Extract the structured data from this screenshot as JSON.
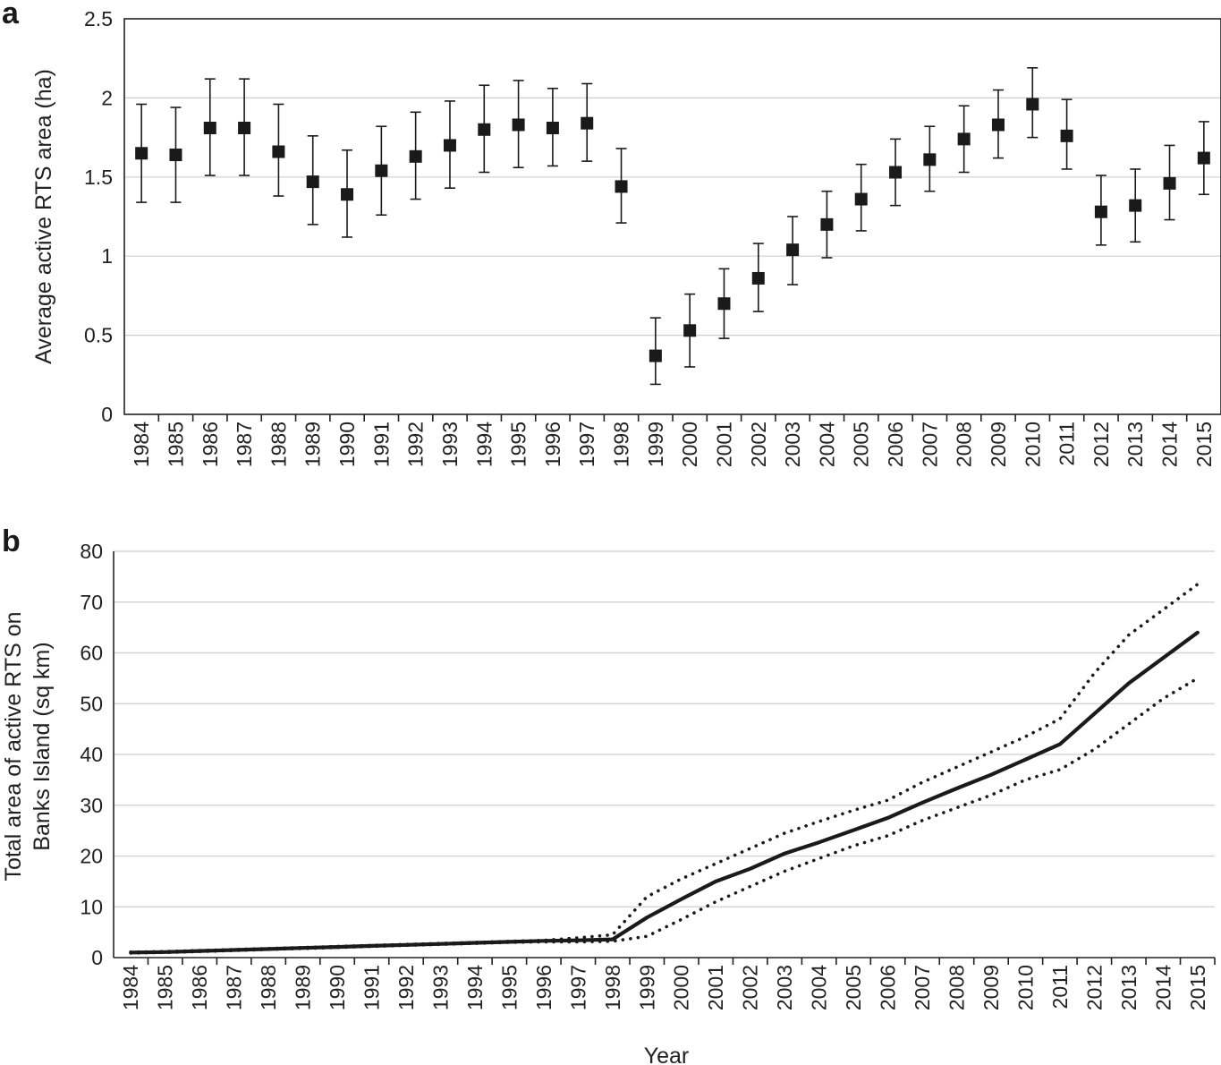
{
  "chart_data": [
    {
      "panel_label": "a",
      "type": "scatter",
      "ylabel": "Average active RTS area (ha)",
      "xlabel": "",
      "ylim": [
        0,
        2.5
      ],
      "yticks": [
        "0",
        "0.5",
        "1",
        "1.5",
        "2",
        "2.5"
      ],
      "grid": true,
      "categories": [
        "1984",
        "1985",
        "1986",
        "1987",
        "1988",
        "1989",
        "1990",
        "1991",
        "1992",
        "1993",
        "1994",
        "1995",
        "1996",
        "1997",
        "1998",
        "1999",
        "2000",
        "2001",
        "2002",
        "2003",
        "2004",
        "2005",
        "2006",
        "2007",
        "2008",
        "2009",
        "2010",
        "2011",
        "2012",
        "2013",
        "2014",
        "2015"
      ],
      "series": [
        {
          "values": [
            1.65,
            1.64,
            1.81,
            1.81,
            1.66,
            1.47,
            1.39,
            1.54,
            1.63,
            1.7,
            1.8,
            1.83,
            1.81,
            1.84,
            1.44,
            0.37,
            0.53,
            0.7,
            0.86,
            1.04,
            1.2,
            1.36,
            1.53,
            1.61,
            1.74,
            1.83,
            1.96,
            1.76,
            1.28,
            1.32,
            1.46,
            1.62
          ],
          "upper": [
            1.96,
            1.94,
            2.12,
            2.12,
            1.96,
            1.76,
            1.67,
            1.82,
            1.91,
            1.98,
            2.08,
            2.11,
            2.06,
            2.09,
            1.68,
            0.61,
            0.76,
            0.92,
            1.08,
            1.25,
            1.41,
            1.58,
            1.74,
            1.82,
            1.95,
            2.05,
            2.19,
            1.99,
            1.51,
            1.55,
            1.7,
            1.85
          ],
          "lower": [
            1.34,
            1.34,
            1.51,
            1.51,
            1.38,
            1.2,
            1.12,
            1.26,
            1.36,
            1.43,
            1.53,
            1.56,
            1.57,
            1.6,
            1.21,
            0.19,
            0.3,
            0.48,
            0.65,
            0.82,
            0.99,
            1.16,
            1.32,
            1.41,
            1.53,
            1.62,
            1.75,
            1.55,
            1.07,
            1.09,
            1.23,
            1.39
          ]
        }
      ]
    },
    {
      "panel_label": "b",
      "type": "line",
      "ylabel_lines": [
        "Total area of active RTS on",
        "Banks Island (sq km)"
      ],
      "xlabel": "Year",
      "ylim": [
        0,
        80
      ],
      "yticks": [
        "0",
        "10",
        "20",
        "30",
        "40",
        "50",
        "60",
        "70",
        "80"
      ],
      "grid": true,
      "categories": [
        "1984",
        "1985",
        "1986",
        "1987",
        "1988",
        "1989",
        "1990",
        "1991",
        "1992",
        "1993",
        "1994",
        "1995",
        "1996",
        "1997",
        "1998",
        "1999",
        "2000",
        "2001",
        "2002",
        "2003",
        "2004",
        "2005",
        "2006",
        "2007",
        "2008",
        "2009",
        "2010",
        "2011",
        "2012",
        "2013",
        "2014",
        "2015"
      ],
      "series": [
        {
          "style": "solid",
          "values": [
            1.0,
            1.1,
            1.3,
            1.5,
            1.7,
            1.9,
            2.1,
            2.3,
            2.5,
            2.7,
            2.9,
            3.1,
            3.3,
            3.4,
            3.6,
            7.9,
            11.5,
            15.0,
            17.5,
            20.5,
            22.7,
            25.1,
            27.5,
            30.5,
            33.3,
            36.0,
            39.0,
            42.0,
            48.0,
            54.0,
            59.0,
            64.0
          ]
        },
        {
          "style": "dotted",
          "values": [
            1.1,
            1.2,
            1.4,
            1.6,
            1.8,
            2.0,
            2.2,
            2.4,
            2.6,
            2.8,
            3.0,
            3.2,
            3.4,
            3.9,
            4.5,
            12.0,
            15.5,
            18.5,
            21.5,
            24.5,
            26.8,
            29.0,
            31.0,
            34.5,
            37.5,
            40.5,
            43.5,
            47.0,
            56.0,
            63.5,
            68.5,
            73.5
          ]
        },
        {
          "style": "dotted",
          "values": [
            0.9,
            1.0,
            1.2,
            1.4,
            1.6,
            1.8,
            2.0,
            2.2,
            2.4,
            2.6,
            2.8,
            3.0,
            3.1,
            3.1,
            3.2,
            4.2,
            7.5,
            11.0,
            14.0,
            17.0,
            19.5,
            22.0,
            24.0,
            27.0,
            29.5,
            32.0,
            35.0,
            37.0,
            41.0,
            46.0,
            51.0,
            55.0
          ]
        }
      ]
    }
  ]
}
